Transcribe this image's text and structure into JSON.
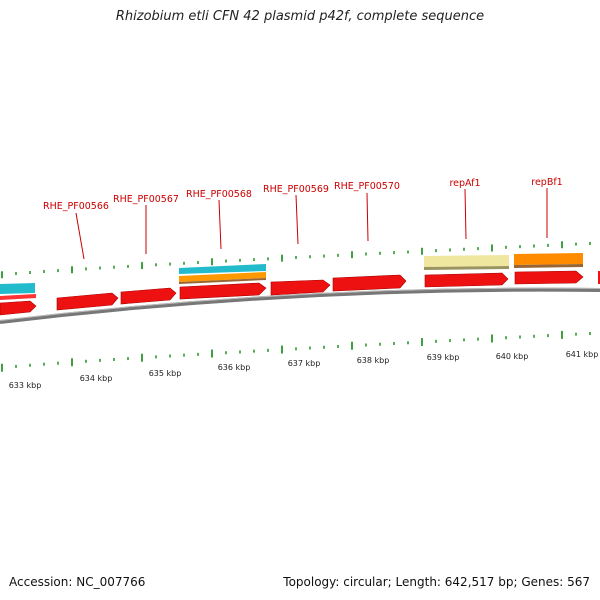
{
  "title": "Rhizobium etli CFN 42 plasmid p42f, complete sequence",
  "footer": {
    "accession": "Accession: NC_007766",
    "summary": "Topology: circular; Length: 642,517 bp; Genes: 567"
  },
  "colors": {
    "gene_forward": "#ee1111",
    "gene_edge": "#b00000",
    "cyan_feature": "#22bbcc",
    "orange_feature": "#ff8c00",
    "pale_feature": "#efe6a0",
    "backbone": "#777777",
    "tick": "#118811",
    "label": "#cc0000"
  },
  "kbp_labels": [
    "633 kbp",
    "634 kbp",
    "635 kbp",
    "636 kbp",
    "637 kbp",
    "638 kbp",
    "639 kbp",
    "640 kbp",
    "641 kbp"
  ],
  "gene_labels": [
    "RHE_PF00566",
    "RHE_PF00567",
    "RHE_PF00568",
    "RHE_PF00569",
    "RHE_PF00570",
    "repAf1",
    "repBf1"
  ]
}
